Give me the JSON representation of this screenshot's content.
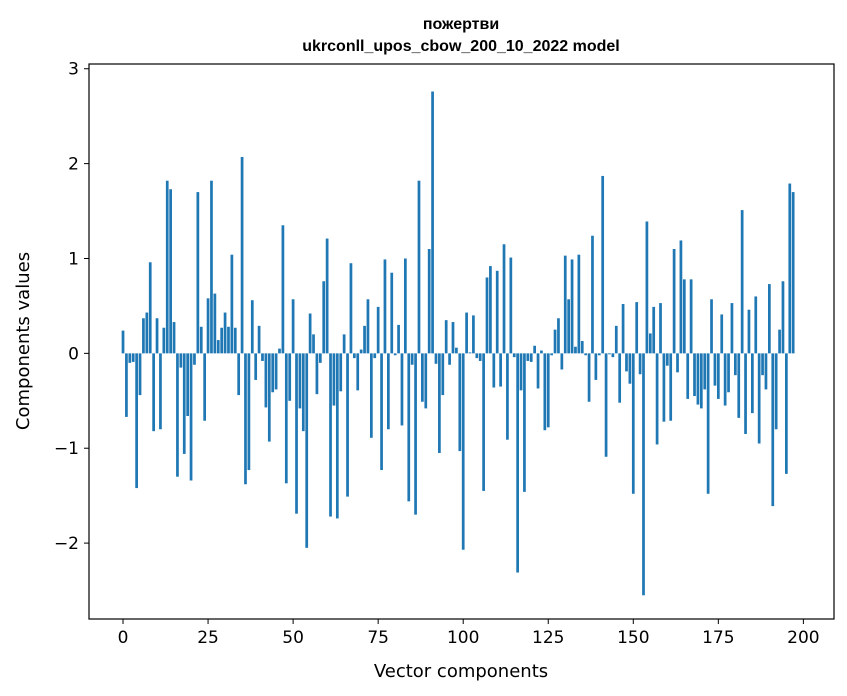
{
  "chart_data": {
    "type": "bar",
    "title_line1": "пожертви",
    "title_line2": "ukrconll_upos_cbow_200_10_2022 model",
    "xlabel": "Vector components",
    "ylabel": "Components values",
    "xlim": [
      -10,
      209
    ],
    "ylim": [
      -2.8,
      3.05
    ],
    "xticks": [
      0,
      25,
      50,
      75,
      100,
      125,
      150,
      175,
      200
    ],
    "yticks": [
      -2,
      -1,
      0,
      1,
      2,
      3
    ],
    "xtick_labels": [
      "0",
      "25",
      "50",
      "75",
      "100",
      "125",
      "150",
      "175",
      "200"
    ],
    "ytick_labels": [
      "−2",
      "−1",
      "0",
      "1",
      "2",
      "3"
    ],
    "bar_color": "#1f77b4",
    "grid": false,
    "values": [
      0.24,
      -0.67,
      -0.1,
      -0.09,
      -1.42,
      -0.44,
      0.37,
      0.43,
      0.96,
      -0.82,
      0.37,
      -0.8,
      0.27,
      1.82,
      1.73,
      0.33,
      -1.3,
      -0.15,
      -1.06,
      -0.66,
      -1.34,
      -0.12,
      1.7,
      0.28,
      -0.71,
      0.58,
      1.82,
      0.63,
      0.14,
      0.27,
      0.43,
      0.28,
      1.04,
      0.27,
      -0.44,
      2.07,
      -1.38,
      -1.23,
      0.56,
      -0.28,
      0.29,
      -0.08,
      -0.57,
      -0.93,
      -0.41,
      -0.38,
      0.05,
      1.35,
      -1.37,
      -0.5,
      0.57,
      -1.69,
      -0.58,
      -0.82,
      -2.05,
      0.42,
      0.2,
      -0.43,
      -0.1,
      0.76,
      1.21,
      -1.72,
      -0.55,
      -1.74,
      -0.4,
      0.2,
      -1.51,
      0.95,
      -0.05,
      -0.39,
      0.04,
      0.29,
      0.57,
      -0.89,
      -0.05,
      0.49,
      -1.23,
      0.99,
      -0.8,
      0.85,
      -0.02,
      0.3,
      -0.76,
      1.0,
      -1.56,
      -0.12,
      -1.7,
      1.82,
      -0.51,
      -0.58,
      1.1,
      2.76,
      -0.11,
      -1.05,
      -0.44,
      0.35,
      -0.12,
      0.33,
      0.06,
      -1.03,
      -2.07,
      0.43,
      0.01,
      0.4,
      -0.05,
      -0.08,
      -1.45,
      0.8,
      0.92,
      -0.36,
      0.87,
      -0.35,
      1.15,
      -0.91,
      1.01,
      -0.04,
      -2.31,
      -0.39,
      -1.46,
      -0.08,
      -0.09,
      0.08,
      -0.37,
      0.03,
      -0.81,
      -0.78,
      -0.02,
      0.25,
      0.37,
      -0.17,
      1.03,
      0.57,
      0.99,
      0.07,
      1.04,
      0.13,
      -0.02,
      -0.51,
      1.24,
      -0.28,
      -0.02,
      1.87,
      -1.09,
      -0.01,
      -0.04,
      0.29,
      -0.52,
      0.52,
      -0.19,
      -0.32,
      -1.48,
      0.54,
      -0.22,
      -2.55,
      1.39,
      0.21,
      0.49,
      -0.96,
      0.53,
      -0.72,
      -0.13,
      -0.71,
      1.1,
      -0.2,
      1.19,
      0.78,
      -0.48,
      0.78,
      -0.45,
      -0.54,
      -0.58,
      -0.38,
      -1.48,
      0.57,
      -0.34,
      -0.48,
      0.41,
      -0.55,
      -0.41,
      0.53,
      -0.23,
      -0.68,
      1.51,
      -0.85,
      0.46,
      -0.63,
      0.6,
      -0.95,
      -0.23,
      -0.38,
      0.73,
      -1.61,
      -0.8,
      0.25,
      0.76,
      -1.27,
      1.79,
      1.7
    ]
  }
}
